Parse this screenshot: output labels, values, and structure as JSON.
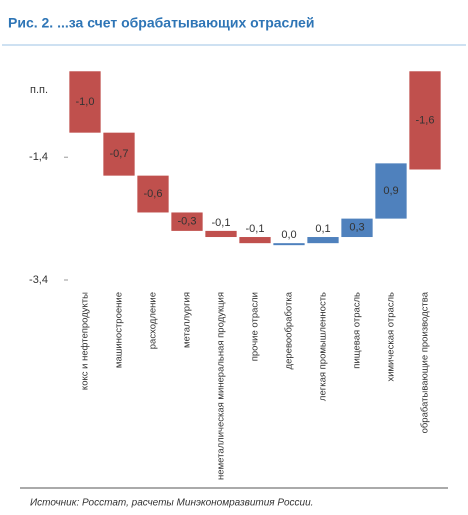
{
  "chart_data": {
    "type": "waterfall",
    "title": "Рис. 2. ...за счет обрабатывающих отраслей",
    "y_label": "п.п.",
    "categories": [
      "кокс и нефтепродукты",
      "машиностроение",
      "расходление",
      "металлургия",
      "неметаллическая минеральная продукция",
      "прочие отрасли",
      "деревообработка",
      "легкая промышленность",
      "пищевая отрасль",
      "химическая отрасль",
      "обрабатывающие производства"
    ],
    "values": [
      -1.0,
      -0.7,
      -0.6,
      -0.3,
      -0.1,
      -0.1,
      0.0,
      0.1,
      0.3,
      0.9,
      -1.6
    ],
    "value_labels": [
      "-1,0",
      "-0,7",
      "-0,6",
      "-0,3",
      "-0,1",
      "-0,1",
      "0,0",
      "0,1",
      "0,3",
      "0,9",
      "-1,6"
    ],
    "measure": [
      "relative",
      "relative",
      "relative",
      "relative",
      "relative",
      "relative",
      "relative",
      "relative",
      "relative",
      "relative",
      "total"
    ],
    "negative_color": "#c0504d",
    "positive_color": "#4f81bd",
    "ylim": [
      -3.4,
      0.2
    ],
    "yticks": [
      {
        "value": -1.4,
        "label": "-1,4"
      },
      {
        "value": -3.4,
        "label": "-3,4"
      }
    ],
    "source": "Источник: Росстат, расчеты Минэкономразвития России."
  }
}
